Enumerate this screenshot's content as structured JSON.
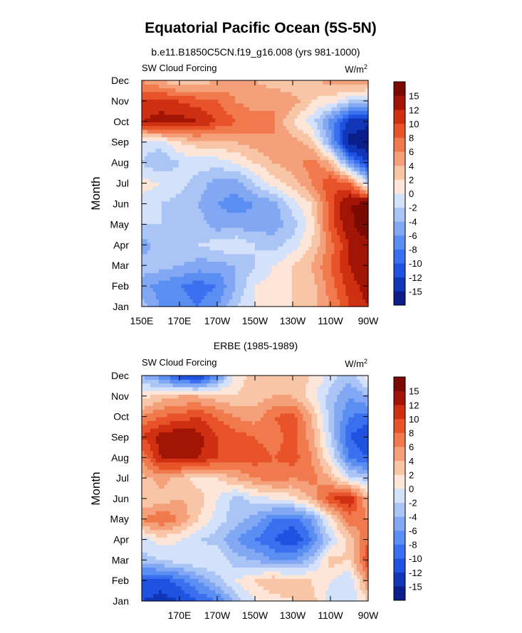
{
  "figure": {
    "title": "Equatorial Pacific Ocean (5S-5N)"
  },
  "chart_data": [
    {
      "type": "heatmap",
      "subtitle": "b.e11.B1850C5CN.f19_g16.008 (yrs 981-1000)",
      "left_label": "SW Cloud Forcing",
      "units": "W/m²",
      "units_base": "W/m",
      "units_exp": "2",
      "xlabel": "",
      "ylabel": "Month",
      "x_ticks": [
        "150E",
        "170E",
        "170W",
        "150W",
        "130W",
        "110W",
        "90W"
      ],
      "x_tick_lons": [
        150,
        170,
        190,
        210,
        230,
        250,
        270
      ],
      "xlim": [
        150,
        270
      ],
      "y_ticks": [
        "Jan",
        "Feb",
        "Mar",
        "Apr",
        "May",
        "Jun",
        "Jul",
        "Aug",
        "Sep",
        "Oct",
        "Nov",
        "Dec"
      ],
      "x": [
        150,
        160,
        170,
        180,
        190,
        200,
        210,
        220,
        230,
        240,
        250,
        260,
        270
      ],
      "z": [
        [
          -3,
          -6,
          -7,
          -8,
          -6,
          -2,
          0,
          1,
          2,
          3,
          6,
          10,
          12
        ],
        [
          -5,
          -7,
          -8,
          -9,
          -8,
          -4,
          0,
          1,
          2,
          3,
          7,
          11,
          13
        ],
        [
          -3,
          -3,
          -4,
          -5,
          -5,
          -4,
          -2,
          0,
          2,
          4,
          8,
          12,
          14
        ],
        [
          -5,
          -3,
          -2,
          -2,
          -1,
          0,
          -2,
          -3,
          -1,
          2,
          7,
          12,
          14
        ],
        [
          -2,
          -2,
          -3,
          -3,
          -5,
          -5,
          -5,
          -5,
          -3,
          1,
          9,
          14,
          18
        ],
        [
          -1,
          -2,
          -3,
          -4,
          -6,
          -7,
          -6,
          -5,
          -1,
          2,
          9,
          15,
          16
        ],
        [
          1,
          0,
          -1,
          -3,
          -5,
          -5,
          -2,
          1,
          3,
          6,
          10,
          8,
          -2
        ],
        [
          -2,
          -4,
          -2,
          -1,
          -1,
          0,
          2,
          4,
          5,
          7,
          4,
          -6,
          -12
        ],
        [
          -1,
          -1,
          2,
          3,
          3,
          4,
          5,
          6,
          5,
          3,
          -5,
          -16,
          -18
        ],
        [
          12,
          13,
          13,
          12,
          10,
          8,
          7,
          6,
          2,
          -1,
          -7,
          -13,
          -14
        ],
        [
          10,
          11,
          10,
          9,
          8,
          6,
          5,
          6,
          5,
          2,
          1,
          -2,
          -4
        ],
        [
          6,
          4,
          2,
          3,
          4,
          5,
          4,
          3,
          2,
          3,
          5,
          6,
          7
        ]
      ]
    },
    {
      "type": "heatmap",
      "subtitle": "ERBE (1985-1989)",
      "left_label": "SW Cloud Forcing",
      "units": "W/m²",
      "units_base": "W/m",
      "units_exp": "2",
      "xlabel": "",
      "ylabel": "Month",
      "x_ticks": [
        "170E",
        "170W",
        "150W",
        "130W",
        "110W",
        "90W"
      ],
      "x_tick_lons": [
        170,
        190,
        210,
        230,
        250,
        270
      ],
      "xlim": [
        150,
        270
      ],
      "y_ticks": [
        "Jan",
        "Feb",
        "Mar",
        "Apr",
        "May",
        "Jun",
        "Jul",
        "Aug",
        "Sep",
        "Oct",
        "Nov",
        "Dec"
      ],
      "x": [
        150,
        160,
        170,
        180,
        190,
        200,
        210,
        220,
        230,
        240,
        250,
        260,
        270
      ],
      "z": [
        [
          -12,
          -13,
          -12,
          -10,
          -8,
          -3,
          0,
          1,
          2,
          3,
          -1,
          -2,
          2
        ],
        [
          -10,
          -11,
          -9,
          -6,
          -3,
          0,
          2,
          4,
          3,
          2,
          0,
          -2,
          6
        ],
        [
          -3,
          -2,
          -1,
          0,
          0,
          -3,
          -4,
          -6,
          -6,
          -3,
          3,
          2,
          10
        ],
        [
          -1,
          1,
          0,
          -2,
          -3,
          -6,
          -8,
          -10,
          -12,
          -8,
          -2,
          3,
          8
        ],
        [
          6,
          8,
          6,
          2,
          -1,
          -3,
          -5,
          -8,
          -9,
          -6,
          1,
          7,
          6
        ],
        [
          2,
          3,
          4,
          3,
          0,
          -3,
          -1,
          0,
          1,
          4,
          10,
          12,
          4
        ],
        [
          3,
          5,
          3,
          1,
          2,
          4,
          6,
          7,
          6,
          7,
          4,
          -1,
          -3
        ],
        [
          6,
          12,
          13,
          12,
          10,
          9,
          9,
          8,
          9,
          6,
          0,
          -8,
          -10
        ],
        [
          10,
          13,
          14,
          13,
          10,
          9,
          8,
          7,
          9,
          5,
          -2,
          -10,
          -12
        ],
        [
          6,
          8,
          9,
          10,
          8,
          6,
          5,
          8,
          9,
          4,
          -3,
          -8,
          -9
        ],
        [
          1,
          3,
          4,
          4,
          3,
          2,
          3,
          4,
          4,
          1,
          -3,
          -6,
          -4
        ],
        [
          -4,
          -7,
          -12,
          -13,
          -7,
          1,
          3,
          4,
          3,
          2,
          -1,
          -3,
          1
        ]
      ]
    }
  ],
  "colorbar": {
    "labels": [
      "-15",
      "-12",
      "-10",
      "-8",
      "-6",
      "-4",
      "-2",
      "0",
      "2",
      "4",
      "6",
      "8",
      "10",
      "12",
      "15"
    ],
    "levels": [
      -15,
      -12,
      -10,
      -8,
      -6,
      -4,
      -2,
      0,
      2,
      4,
      6,
      8,
      10,
      12,
      15
    ],
    "colors": [
      "#0b1e8a",
      "#1236b8",
      "#1f52e0",
      "#3a6ff0",
      "#5b8ef3",
      "#82a8f4",
      "#a9c4f5",
      "#d3e2fa",
      "#fde6d8",
      "#f9c5a7",
      "#f4a07a",
      "#f07a4d",
      "#e8532a",
      "#cf3012",
      "#a21405",
      "#7a0a02"
    ]
  }
}
